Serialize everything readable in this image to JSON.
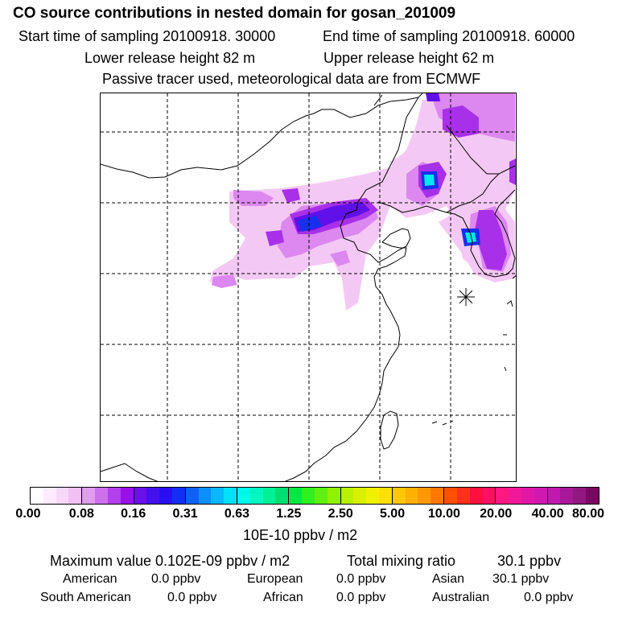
{
  "header": {
    "title": "CO  source contributions in nested domain for gosan_201009",
    "start_label": "Start time of sampling 20100918. 30000",
    "end_label": "End time of sampling 20100918. 60000",
    "lower_label": "Lower release height   82 m",
    "upper_label": "Upper release height   62 m",
    "tracer_note": "Passive tracer used, meteorological data are from ECMWF"
  },
  "colorbar": {
    "tick_labels": [
      "0.00",
      "0.08",
      "0.16",
      "0.31",
      "0.63",
      "1.25",
      "2.50",
      "5.00",
      "10.00",
      "20.00",
      "40.00",
      "80.00"
    ],
    "unit": "10E-10 ppbv / m2",
    "colors": [
      "#ffffff",
      "#fcecfc",
      "#f8d8f8",
      "#f2c0f4",
      "#e29cf0",
      "#cc70ec",
      "#b340ea",
      "#9a10ea",
      "#6a10ea",
      "#4410ee",
      "#2810f2",
      "#1030f6",
      "#1060f8",
      "#0a90f8",
      "#08b8f8",
      "#00e0f8",
      "#00f8e8",
      "#00f8c0",
      "#00f098",
      "#00e070",
      "#00e848",
      "#30f020",
      "#60f010",
      "#90f000",
      "#b8f000",
      "#d8f000",
      "#f0f000",
      "#ffe000",
      "#ffc800",
      "#ffb000",
      "#ff9800",
      "#ff7800",
      "#ff5000",
      "#ff3020",
      "#ff1040",
      "#ff1060",
      "#ff1880",
      "#f01898",
      "#e018a8",
      "#d018b0",
      "#c018b0",
      "#a81898",
      "#901880",
      "#780860"
    ]
  },
  "stats": {
    "max_label": "Maximum value  0.102E-09 ppbv / m2",
    "total_label": "Total mixing ratio",
    "total_value": "30.1 ppbv",
    "american_label": "American",
    "american_value": "0.0 ppbv",
    "european_label": "European",
    "european_value": "0.0 ppbv",
    "asian_label": "Asian",
    "asian_value": "30.1 ppbv",
    "south_american_label": "South American",
    "south_american_value": "0.0 ppbv",
    "african_label": "African",
    "african_value": "0.0 ppbv",
    "australian_label": "Australian",
    "australian_value": "0.0 ppbv"
  },
  "map": {
    "receptor_symbol": "gosan-receptor-marker",
    "plume_colors": {
      "light": "#f4c8f4",
      "mid": "#dc88f0",
      "violet": "#a830e8",
      "deep": "#6010e8",
      "blue": "#1830ea",
      "cyan": "#00e8f0"
    }
  }
}
